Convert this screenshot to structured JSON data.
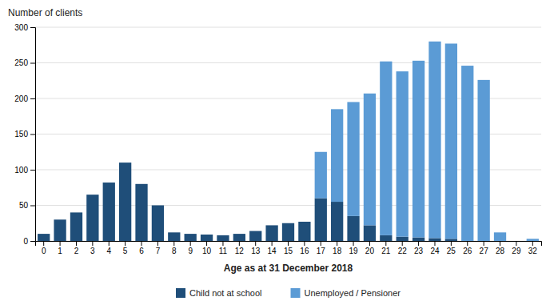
{
  "chart_data": {
    "type": "bar",
    "stacked": true,
    "xlabel": "Age as at 31 December 2018",
    "ylabel": "Number of clients",
    "categories": [
      "0",
      "1",
      "2",
      "3",
      "4",
      "5",
      "6",
      "7",
      "8",
      "9",
      "10",
      "11",
      "12",
      "13",
      "14",
      "15",
      "16",
      "17",
      "18",
      "19",
      "20",
      "21",
      "22",
      "23",
      "24",
      "25",
      "26",
      "27",
      "28",
      "29",
      "32"
    ],
    "series": [
      {
        "name": "Child not at school",
        "color": "#1f4e79",
        "values": [
          10,
          30,
          40,
          65,
          82,
          110,
          80,
          50,
          12,
          10,
          9,
          8,
          10,
          14,
          22,
          25,
          27,
          60,
          55,
          35,
          22,
          8,
          6,
          5,
          4,
          3,
          0,
          0,
          0,
          0,
          0
        ]
      },
      {
        "name": "Unemployed / Pensioner",
        "color": "#5b9bd5",
        "values": [
          0,
          0,
          0,
          0,
          0,
          0,
          0,
          0,
          0,
          0,
          0,
          0,
          0,
          0,
          0,
          0,
          0,
          65,
          130,
          160,
          185,
          244,
          232,
          248,
          276,
          274,
          246,
          226,
          12,
          0,
          3
        ]
      }
    ],
    "ylim": [
      0,
      300
    ],
    "yticks": [
      0,
      50,
      100,
      150,
      200,
      250,
      300
    ],
    "grid": true,
    "legend": "bottom"
  }
}
